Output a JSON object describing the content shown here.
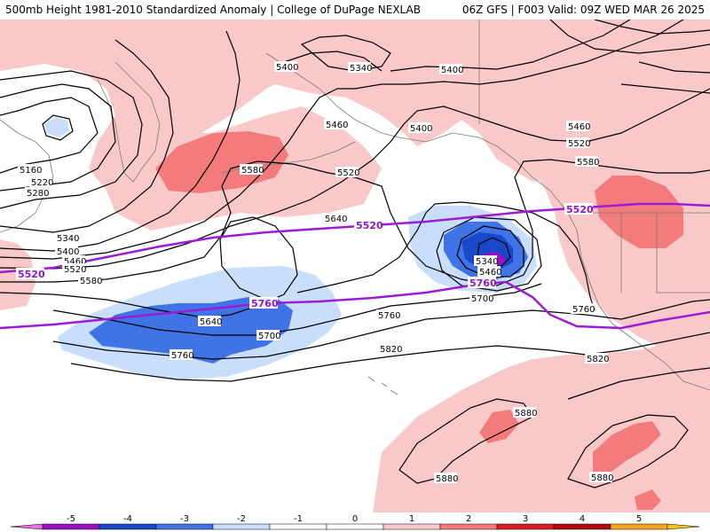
{
  "header": {
    "title_left": "500mb Height 1981-2010 Standardized Anomaly | College of DuPage NEXLAB",
    "title_right": "06Z GFS | F003 Valid: 09Z WED MAR 26 2025"
  },
  "colors": {
    "anomaly_scale": [
      "#e873e0",
      "#9a10c7",
      "#1848c8",
      "#3f73e6",
      "#c9defa",
      "#ffffff",
      "#ffffff",
      "#f9c9c9",
      "#f47b7b",
      "#d81f1f",
      "#b00a0a",
      "#f7a51e",
      "#f5c518"
    ],
    "reference_line": "#9c1cd6",
    "contour": "#000000"
  },
  "colorbar": {
    "labels": [
      "-5",
      "-4",
      "-3",
      "-2",
      "-1",
      "0",
      "1",
      "2",
      "3",
      "4",
      "5"
    ]
  },
  "contour_labels": [
    "5400",
    "5340",
    "5400",
    "5460",
    "5400",
    "5460",
    "5520",
    "5160",
    "5220",
    "5280",
    "5580",
    "5520",
    "5580",
    "5640",
    "5340",
    "5400",
    "5460",
    "5520",
    "5580",
    "5340",
    "5460",
    "5700",
    "5640",
    "5700",
    "5760",
    "5760",
    "5820",
    "5760",
    "5820",
    "5880",
    "5880",
    "5880"
  ],
  "reference_labels": [
    "5520",
    "5520",
    "5520",
    "5760",
    "5760"
  ]
}
